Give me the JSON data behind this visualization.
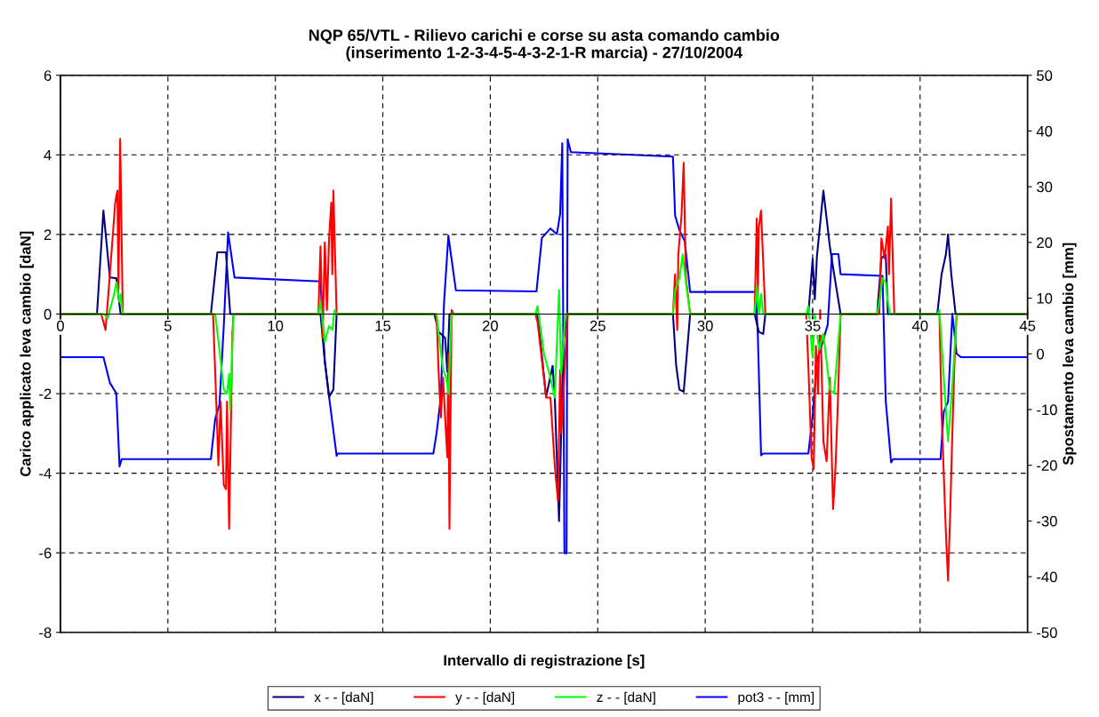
{
  "chart_data": {
    "type": "line",
    "title": "NQP 65/VTL - Rilievo carichi e corse su asta comando cambio\n(inserimento 1-2-3-4-5-4-3-2-1-R marcia) - 27/10/2004",
    "xlabel": "Intervallo di registrazione [s]",
    "ylabel": "Carico applicato leva cambio [daN]",
    "y2label": "Spostamento leva cambio [mm]",
    "xlim": [
      0,
      45
    ],
    "xticks": [
      0,
      5,
      10,
      15,
      20,
      25,
      30,
      35,
      40,
      45
    ],
    "ylim": [
      -8,
      6
    ],
    "yticks": [
      -8,
      -6,
      -4,
      -2,
      0,
      2,
      4,
      6
    ],
    "y2lim": [
      -50,
      50
    ],
    "y2ticks": [
      -50,
      -40,
      -30,
      -20,
      -10,
      0,
      10,
      20,
      30,
      40,
      50
    ],
    "grid": true,
    "legend": "bottom",
    "line_style": "solid",
    "marker": "none",
    "series": [
      {
        "name": "x - - [daN]",
        "color": "#000080",
        "x": [
          0,
          1.7,
          2.0,
          2.3,
          2.6,
          2.8,
          7.0,
          7.3,
          7.7,
          7.9,
          12.1,
          12.3,
          12.5,
          12.7,
          12.85,
          17.4,
          17.6,
          17.9,
          18.0,
          18.1,
          22.2,
          22.6,
          22.9,
          23.0,
          23.2,
          23.4,
          23.6,
          28.5,
          28.65,
          28.8,
          29.0,
          29.3,
          32.3,
          32.5,
          32.7,
          32.8,
          34.8,
          35.0,
          35.1,
          35.2,
          35.5,
          35.8,
          36.0,
          36.3,
          38.0,
          38.2,
          38.4,
          38.5,
          40.8,
          41.0,
          41.2,
          41.3,
          41.45,
          41.65,
          45
        ],
        "values": [
          0,
          0,
          2.6,
          0.92,
          0.9,
          0,
          0,
          1.55,
          1.55,
          0,
          0,
          -1.18,
          -2.08,
          -1.9,
          0,
          0,
          -0.45,
          -0.6,
          -1.45,
          0,
          0,
          -2.08,
          -1.3,
          -2.08,
          -5.2,
          -0.7,
          0,
          0,
          -1.3,
          -1.9,
          -1.95,
          0,
          0,
          -0.45,
          -0.5,
          0,
          0,
          1.38,
          0.37,
          1.45,
          3.1,
          1.7,
          1.0,
          0,
          0,
          1.4,
          1.5,
          0,
          0,
          1.0,
          1.5,
          2.0,
          1.0,
          0,
          0
        ]
      },
      {
        "name": "y - - [daN]",
        "color": "#ff0000",
        "x": [
          0,
          1.9,
          2.1,
          2.3,
          2.55,
          2.65,
          2.7,
          2.78,
          2.9,
          7.1,
          7.25,
          7.35,
          7.45,
          7.6,
          7.7,
          7.75,
          7.85,
          8.0,
          8.05,
          12.0,
          12.1,
          12.2,
          12.3,
          12.4,
          12.5,
          12.6,
          12.65,
          12.7,
          12.85,
          17.5,
          17.6,
          17.7,
          17.8,
          18.0,
          18.05,
          18.1,
          18.2,
          18.3,
          22.1,
          22.2,
          22.6,
          22.8,
          23.0,
          23.15,
          23.25,
          23.3,
          23.6,
          28.5,
          28.6,
          28.7,
          28.75,
          28.9,
          29.0,
          29.1,
          29.3,
          32.3,
          32.4,
          32.45,
          32.5,
          32.6,
          32.8,
          34.7,
          34.8,
          34.95,
          35.05,
          35.15,
          35.25,
          35.35,
          35.5,
          35.65,
          35.8,
          35.95,
          36.05,
          36.15,
          36.3,
          38.1,
          38.2,
          38.35,
          38.5,
          38.55,
          38.65,
          38.8,
          40.9,
          41.0,
          41.1,
          41.2,
          41.3,
          41.4,
          41.5,
          41.6,
          41.7,
          45
        ],
        "values": [
          0,
          0,
          -0.4,
          1.0,
          2.8,
          3.1,
          0.6,
          4.4,
          0,
          0,
          -2.2,
          -3.8,
          -2.2,
          -4.3,
          -4.4,
          -2.2,
          -5.4,
          -0.5,
          0,
          0,
          1.7,
          -0.6,
          1.8,
          0.1,
          1.9,
          2.8,
          1.0,
          3.1,
          0,
          0,
          -1.5,
          -2.6,
          -1.6,
          -3.6,
          -1.0,
          -5.4,
          0.1,
          0,
          0,
          -0.2,
          -2.1,
          -2.1,
          -3.8,
          -4.7,
          -1.4,
          -3.0,
          0,
          0,
          1.0,
          -0.4,
          1.5,
          2.5,
          3.8,
          0.9,
          0,
          0,
          2.4,
          0.5,
          2.2,
          2.6,
          0,
          0,
          -1.3,
          -3.6,
          -3.9,
          -0.8,
          -2.0,
          0.1,
          -3.2,
          -3.7,
          -1.6,
          -4.9,
          -4.0,
          -2.6,
          0,
          0,
          1.9,
          1.4,
          2.2,
          1.0,
          2.9,
          0,
          0,
          -2.5,
          -4.0,
          -5.5,
          -6.7,
          -5.0,
          -3.0,
          -1.2,
          0,
          0
        ]
      },
      {
        "name": "z - - [daN]",
        "color": "#00ff00",
        "x": [
          0,
          2.0,
          2.2,
          2.5,
          2.6,
          2.75,
          2.8,
          2.9,
          7.2,
          7.4,
          7.6,
          7.75,
          7.85,
          7.9,
          8.05,
          12.0,
          12.1,
          12.3,
          12.5,
          12.65,
          12.75,
          12.85,
          17.5,
          17.6,
          17.8,
          17.95,
          18.05,
          18.2,
          22.1,
          22.2,
          22.5,
          22.8,
          23.0,
          23.2,
          23.3,
          23.5,
          28.5,
          28.6,
          28.8,
          28.95,
          29.1,
          29.3,
          32.3,
          32.4,
          32.5,
          32.6,
          32.7,
          34.7,
          34.8,
          35.0,
          35.1,
          35.3,
          35.5,
          35.8,
          36.0,
          36.3,
          38.0,
          38.1,
          38.25,
          38.4,
          38.5,
          38.6,
          40.8,
          40.9,
          41.15,
          41.3,
          41.5,
          41.7,
          45
        ],
        "values": [
          0,
          0,
          -0.1,
          0.5,
          0.8,
          0.3,
          0.5,
          0,
          0,
          -0.9,
          -1.9,
          -2.0,
          -1.5,
          -2.4,
          0,
          0,
          0.3,
          -0.7,
          -0.3,
          -0.4,
          0.1,
          0,
          0,
          -0.5,
          -1.4,
          -1.6,
          -2.0,
          0,
          0,
          0.2,
          -1.0,
          -1.6,
          -2.1,
          0.6,
          -1.5,
          0,
          0,
          0.6,
          0.9,
          1.5,
          0.8,
          0,
          0,
          0.7,
          0,
          0.5,
          0,
          0,
          0.2,
          -1.1,
          0,
          -0.9,
          -0.5,
          -1.9,
          -2.0,
          0,
          0,
          0.3,
          0.9,
          0.8,
          0.3,
          0,
          0,
          0.1,
          -2.0,
          -3.2,
          -1.8,
          0,
          0
        ]
      },
      {
        "name": "pot3 - - [mm]",
        "color": "#0000ff",
        "axis": "y2",
        "x": [
          0,
          2.0,
          2.3,
          2.6,
          2.75,
          2.85,
          7.0,
          7.2,
          7.4,
          7.6,
          7.8,
          8.1,
          12.1,
          12.3,
          12.5,
          12.85,
          12.9,
          17.35,
          17.5,
          17.7,
          17.85,
          18.05,
          18.4,
          22.15,
          22.4,
          22.8,
          23.1,
          23.25,
          23.35,
          23.45,
          23.55,
          23.6,
          23.75,
          28.5,
          28.6,
          28.8,
          29.05,
          29.3,
          32.35,
          32.45,
          32.6,
          32.7,
          34.8,
          35.0,
          35.2,
          35.7,
          35.9,
          36.2,
          36.3,
          38.25,
          38.4,
          38.65,
          38.75,
          40.95,
          41.1,
          41.3,
          41.5,
          41.7,
          41.9,
          45
        ],
        "values": [
          -0.6,
          -0.6,
          -5.2,
          -7.1,
          -20.2,
          -18.9,
          -18.9,
          -11.7,
          -9.1,
          5.0,
          21.8,
          13.7,
          13.0,
          -1.3,
          -7.7,
          -18.3,
          -17.9,
          -17.9,
          -14.3,
          -7.7,
          9.2,
          21.2,
          11.4,
          11.2,
          20.8,
          22.5,
          21.5,
          25.1,
          37.8,
          -35.8,
          -35.8,
          38.5,
          36.2,
          35.4,
          24.8,
          22.2,
          20.2,
          11.1,
          11.1,
          3.3,
          -18.2,
          -17.9,
          -17.9,
          -11.1,
          -1.3,
          5.2,
          17.9,
          17.9,
          14.3,
          14.0,
          -8.4,
          -19.5,
          -18.9,
          -18.9,
          -10.4,
          -8.6,
          7.2,
          0,
          -0.6,
          -0.6
        ]
      }
    ]
  }
}
